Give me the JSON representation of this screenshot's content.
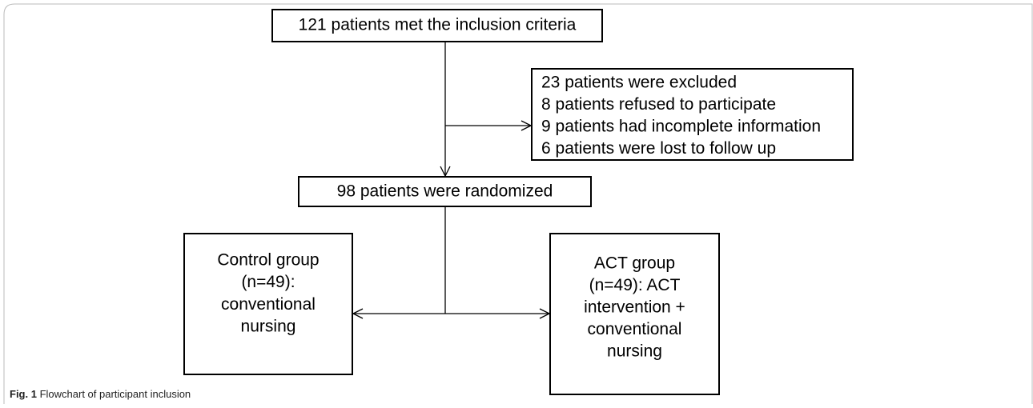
{
  "nodes": [
    {
      "lines": [
        "121 patients met the inclusion criteria"
      ]
    },
    {
      "lines": [
        "23 patients were excluded",
        "8 patients refused to participate",
        "9 patients had incomplete information",
        "6 patients were lost to follow up"
      ]
    },
    {
      "lines": [
        "98 patients were randomized"
      ]
    },
    {
      "lines": [
        "Control group",
        "(n=49):",
        "conventional",
        "nursing"
      ]
    },
    {
      "lines": [
        "ACT group",
        "(n=49): ACT",
        "intervention +",
        "conventional",
        "nursing"
      ]
    }
  ],
  "caption": {
    "label": "Fig. 1",
    "text": "Flowchart of participant inclusion"
  }
}
